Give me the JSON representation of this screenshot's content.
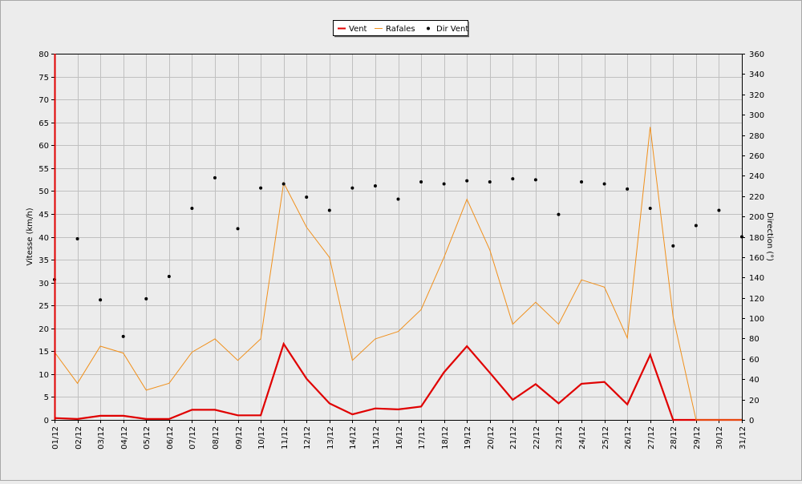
{
  "chart_data": {
    "type": "line",
    "categories": [
      "01/12",
      "02/12",
      "03/12",
      "04/12",
      "05/12",
      "06/12",
      "07/12",
      "08/12",
      "09/12",
      "10/12",
      "11/12",
      "12/12",
      "13/12",
      "14/12",
      "15/12",
      "16/12",
      "17/12",
      "18/12",
      "19/12",
      "20/12",
      "21/12",
      "22/12",
      "23/12",
      "24/12",
      "25/12",
      "26/12",
      "27/12",
      "28/12",
      "29/12",
      "30/12",
      "31/12"
    ],
    "xlabel": "",
    "ylabel": "Vitesse (km/h)",
    "y2label": "Direction (°)",
    "ylim": [
      0,
      80
    ],
    "y2lim": [
      0,
      360
    ],
    "yticks": [
      "0",
      "5",
      "10",
      "15",
      "20",
      "25",
      "30",
      "35",
      "40",
      "45",
      "50",
      "55",
      "60",
      "65",
      "70",
      "75",
      "80"
    ],
    "y2ticks": [
      "0",
      "20",
      "40",
      "60",
      "80",
      "100",
      "120",
      "140",
      "160",
      "180",
      "200",
      "220",
      "240",
      "260",
      "280",
      "300",
      "320",
      "340",
      "360"
    ],
    "grid": true,
    "legend_position": "top-center",
    "series": [
      {
        "name": "Vent",
        "axis": "left",
        "style": "line",
        "color": "#e00000",
        "values": [
          0.4,
          0.2,
          0.9,
          0.9,
          0.2,
          0.2,
          2.2,
          2.2,
          1.0,
          1.0,
          16.6,
          9.0,
          3.6,
          1.2,
          2.5,
          2.3,
          2.9,
          10.4,
          16.1,
          10.3,
          4.4,
          7.8,
          3.6,
          7.9,
          8.3,
          3.4,
          14.2,
          0.0,
          0.0,
          0.0,
          0.0
        ]
      },
      {
        "name": "Rafales",
        "axis": "left",
        "style": "line",
        "color": "#f0901c",
        "values": [
          14.8,
          8.0,
          16.1,
          14.6,
          6.5,
          8.0,
          14.8,
          17.7,
          13.0,
          17.7,
          51.8,
          42.1,
          35.5,
          13.0,
          17.7,
          19.3,
          24.1,
          35.5,
          48.2,
          37.1,
          20.9,
          25.7,
          20.9,
          30.6,
          29.0,
          17.9,
          64.0,
          22.5,
          0.0,
          0.0,
          0.0
        ]
      },
      {
        "name": "Dir Vent",
        "axis": "right",
        "style": "points",
        "color": "#000000",
        "values": [
          138,
          178,
          118,
          82,
          119,
          141,
          208,
          238,
          188,
          228,
          232,
          219,
          206,
          228,
          230,
          217,
          234,
          232,
          235,
          234,
          237,
          236,
          202,
          234,
          232,
          227,
          208,
          171,
          191,
          206,
          180
        ]
      }
    ]
  }
}
